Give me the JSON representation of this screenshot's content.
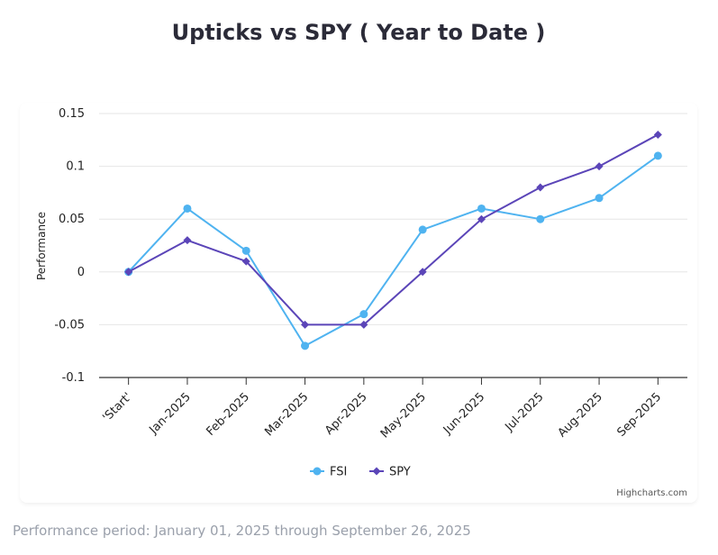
{
  "chart_data": {
    "type": "line",
    "title": "Upticks vs SPY ( Year to Date )",
    "ylabel": "Performance",
    "xlabel": "",
    "ylim": [
      -0.1,
      0.15
    ],
    "yticks": [
      0.15,
      0.1,
      0.05,
      0,
      -0.05,
      -0.1
    ],
    "ytick_labels": [
      "0.15",
      "0.1",
      "0.05",
      "0",
      "-0.05",
      "-0.1"
    ],
    "categories": [
      "'Start'",
      "Jan-2025",
      "Feb-2025",
      "Mar-2025",
      "Apr-2025",
      "May-2025",
      "Jun-2025",
      "Jul-2025",
      "Aug-2025",
      "Sep-2025"
    ],
    "series": [
      {
        "name": "FSI",
        "color": "#4fb3f0",
        "marker": "circle",
        "values": [
          0,
          0.06,
          0.02,
          -0.07,
          -0.04,
          0.04,
          0.06,
          0.05,
          0.07,
          0.11
        ]
      },
      {
        "name": "SPY",
        "color": "#5b45b8",
        "marker": "diamond",
        "values": [
          0,
          0.03,
          0.01,
          -0.05,
          -0.05,
          0,
          0.05,
          0.08,
          0.1,
          0.13
        ]
      }
    ],
    "grid": true,
    "legend": "bottom-center",
    "credits": "Highcharts.com"
  },
  "footnote": "Performance period: January 01, 2025 through September 26, 2025"
}
